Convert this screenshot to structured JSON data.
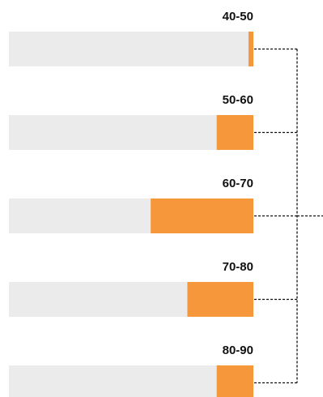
{
  "chart_data": {
    "type": "bar",
    "orientation": "horizontal",
    "categories": [
      "40-50",
      "50-60",
      "60-70",
      "70-80",
      "80-90"
    ],
    "values": [
      2,
      15,
      42,
      27,
      15
    ],
    "ylim": [
      0,
      100
    ],
    "bar_color": "#F5973A",
    "track_color": "#EBEBEB",
    "connector_style": "dashed-bracket",
    "grid": false,
    "legend": "none"
  }
}
